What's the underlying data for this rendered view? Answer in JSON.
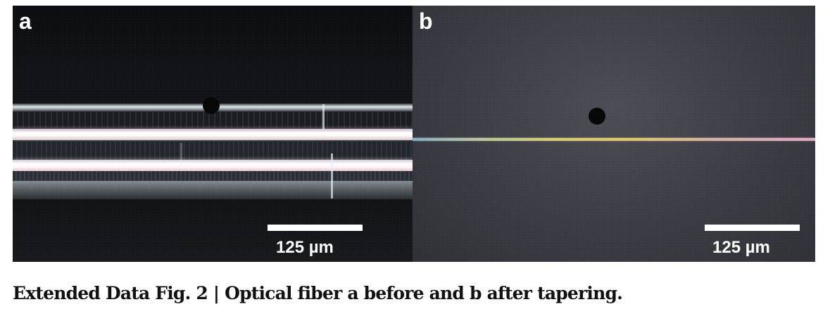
{
  "panels": {
    "a": {
      "label": "a",
      "scale_bar_text": "125 µm"
    },
    "b": {
      "label": "b",
      "scale_bar_text": "125 µm"
    }
  },
  "caption": {
    "text": "Extended Data Fig. 2 | Optical fiber a before and b after tapering."
  }
}
